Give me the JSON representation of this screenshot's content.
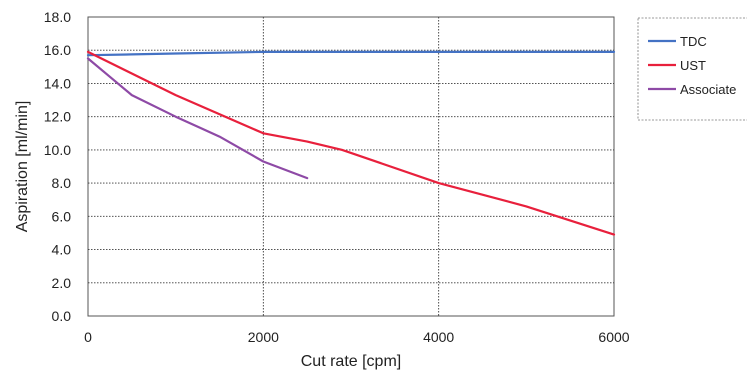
{
  "chart_data": {
    "type": "line",
    "title": "",
    "xlabel": "Cut rate [cpm]",
    "ylabel": "Aspiration [ml/min]",
    "xlim": [
      0,
      6000
    ],
    "ylim": [
      0,
      18
    ],
    "x_ticks": [
      0,
      2000,
      4000,
      6000
    ],
    "x_tick_labels": [
      "0",
      "2000",
      "4000",
      "6000"
    ],
    "y_ticks": [
      0,
      2,
      4,
      6,
      8,
      10,
      12,
      14,
      16,
      18
    ],
    "y_tick_labels": [
      "0.0",
      "2.0",
      "4.0",
      "6.0",
      "8.0",
      "10.0",
      "12.0",
      "14.0",
      "16.0",
      "18.0"
    ],
    "grid": true,
    "legend_position": "right",
    "series": [
      {
        "name": "TDC",
        "color": "#4472c4",
        "x": [
          0,
          500,
          1000,
          2000,
          2500,
          3000,
          4000,
          5000,
          6000
        ],
        "y": [
          15.7,
          15.75,
          15.8,
          15.9,
          15.9,
          15.9,
          15.9,
          15.9,
          15.9
        ]
      },
      {
        "name": "UST",
        "color": "#e8203c",
        "x": [
          0,
          500,
          1000,
          2000,
          2500,
          2900,
          4000,
          5000,
          6000
        ],
        "y": [
          15.9,
          14.6,
          13.3,
          11.0,
          10.5,
          10.0,
          8.0,
          6.6,
          4.9
        ]
      },
      {
        "name": "Associate",
        "color": "#8e4aa6",
        "x": [
          0,
          250,
          500,
          1000,
          1500,
          2000,
          2500
        ],
        "y": [
          15.5,
          14.4,
          13.3,
          12.0,
          10.8,
          9.3,
          8.3
        ]
      }
    ]
  }
}
